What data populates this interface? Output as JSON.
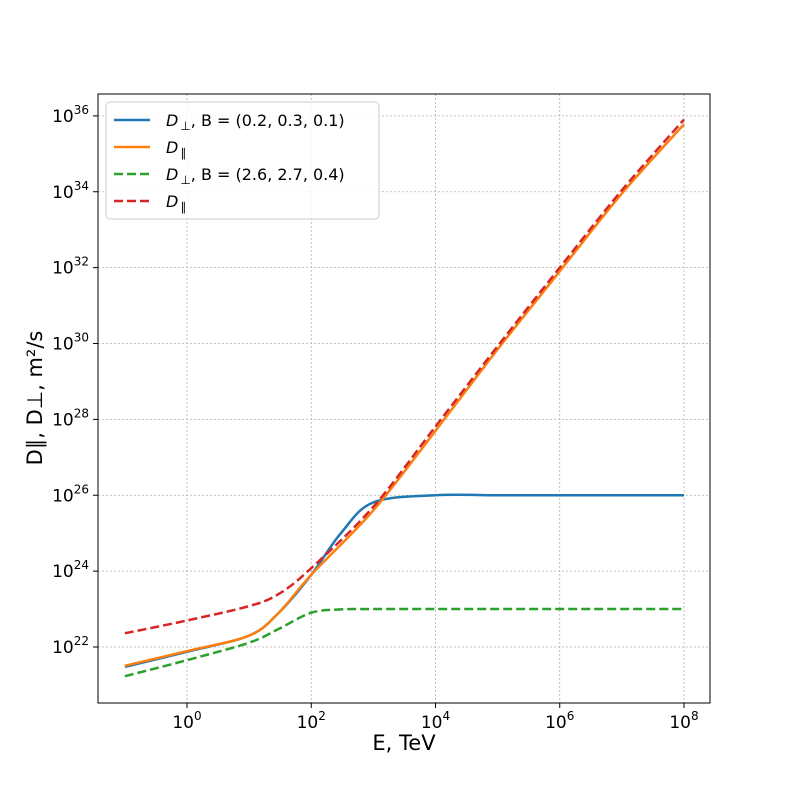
{
  "chart_data": {
    "type": "line",
    "xscale": "log",
    "yscale": "log",
    "xlabel": "E, TeV",
    "ylabel": "D∥, D⊥, m²/s",
    "xlim": [
      0.1,
      100000000
    ],
    "ylim": [
      1e+21,
      1e+37
    ],
    "grid": true,
    "legend_position": "top-left",
    "x_ticks": [
      {
        "base": "10",
        "exp": "0",
        "value": 1
      },
      {
        "base": "10",
        "exp": "2",
        "value": 100
      },
      {
        "base": "10",
        "exp": "4",
        "value": 10000
      },
      {
        "base": "10",
        "exp": "6",
        "value": 1000000
      },
      {
        "base": "10",
        "exp": "8",
        "value": 100000000
      }
    ],
    "y_ticks": [
      {
        "base": "10",
        "exp": "22",
        "value": 1e+22
      },
      {
        "base": "10",
        "exp": "24",
        "value": 1e+24
      },
      {
        "base": "10",
        "exp": "26",
        "value": 1e+26
      },
      {
        "base": "10",
        "exp": "28",
        "value": 1e+28
      },
      {
        "base": "10",
        "exp": "30",
        "value": 1e+30
      },
      {
        "base": "10",
        "exp": "32",
        "value": 1e+32
      },
      {
        "base": "10",
        "exp": "34",
        "value": 1e+34
      },
      {
        "base": "10",
        "exp": "36",
        "value": 1e+36
      }
    ],
    "series": [
      {
        "name": "D⊥, B = (0.2, 0.3, 0.1)",
        "legend_label": {
          "sym": "D",
          "sub": "⊥",
          "rest": ", B = (0.2, 0.3, 0.1)"
        },
        "color": "#1f77b4",
        "style": "solid",
        "x": [
          0.1,
          1,
          10,
          30,
          100,
          300,
          1000,
          10000,
          100000,
          1000000,
          10000000,
          100000000
        ],
        "y": [
          3e+21,
          7.5e+21,
          2e+22,
          8e+22,
          8e+23,
          1e+25,
          6.5e+25,
          1e+26,
          1e+26,
          1e+26,
          1e+26,
          1e+26
        ]
      },
      {
        "name": "D∥",
        "legend_label": {
          "sym": "D",
          "sub": "∥",
          "rest": ""
        },
        "color": "#ff7f0e",
        "style": "solid",
        "x": [
          0.1,
          1,
          10,
          30,
          100,
          1000,
          10000,
          100000,
          1000000,
          10000000,
          100000000
        ],
        "y": [
          3.2e+21,
          7.8e+21,
          2e+22,
          8e+22,
          8e+23,
          4e+25,
          5e+27,
          7e+29,
          8e+31,
          9e+33,
          6e+35
        ]
      },
      {
        "name": "D⊥, B = (2.6, 2.7, 0.4)",
        "legend_label": {
          "sym": "D",
          "sub": "⊥",
          "rest": ", B = (2.6, 2.7, 0.4)"
        },
        "color": "#2ca02c",
        "style": "dashed",
        "x": [
          0.1,
          1,
          10,
          30,
          100,
          300,
          1000,
          10000,
          100000,
          1000000,
          10000000,
          100000000
        ],
        "y": [
          1.7e+21,
          4.5e+21,
          1.3e+22,
          3e+22,
          8e+22,
          9.8e+22,
          1e+23,
          1e+23,
          1e+23,
          1e+23,
          1e+23,
          1e+23
        ]
      },
      {
        "name": "D∥",
        "legend_label": {
          "sym": "D",
          "sub": "∥",
          "rest": ""
        },
        "color": "#d62728",
        "style": "dashed",
        "x": [
          0.1,
          1,
          10,
          30,
          100,
          1000,
          10000,
          100000,
          1000000,
          10000000,
          100000000
        ],
        "y": [
          2.3e+22,
          5e+22,
          1.2e+23,
          2.5e+23,
          1.2e+24,
          5e+25,
          6.5e+27,
          8.5e+29,
          1e+32,
          1.1e+34,
          8e+35
        ]
      }
    ]
  }
}
